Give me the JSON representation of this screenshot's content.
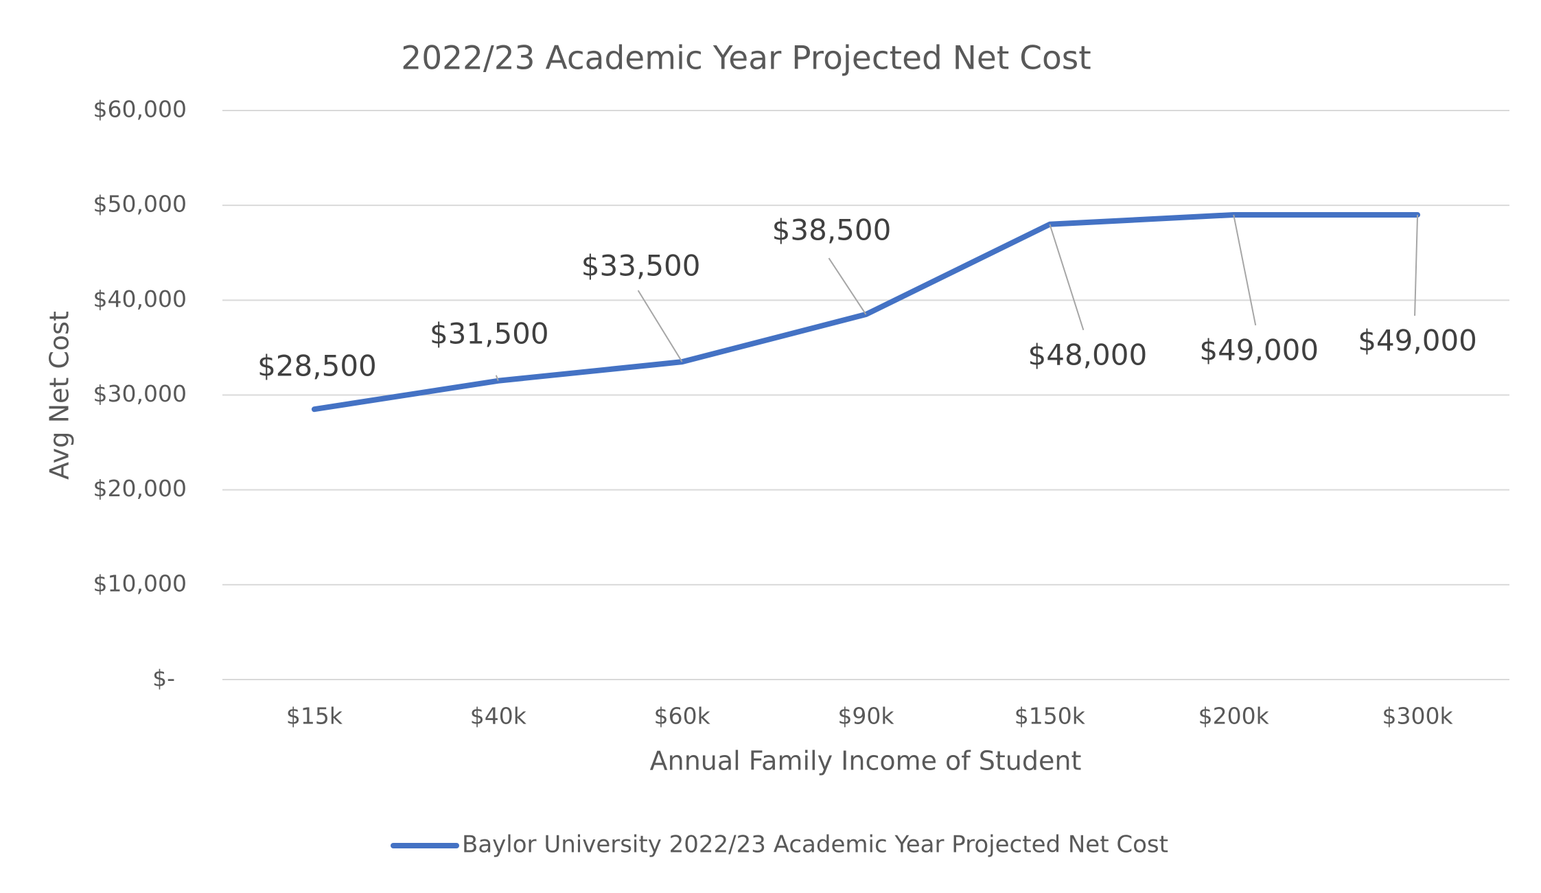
{
  "chart_data": {
    "type": "line",
    "title": "2022/23 Academic Year Projected Net Cost",
    "x_label": "Annual Family Income of Student",
    "y_label": "Avg Net Cost",
    "categories": [
      "$15k",
      "$40k",
      "$60k",
      "$90k",
      "$150k",
      "$200k",
      "$300k"
    ],
    "series": [
      {
        "name": "Baylor University 2022/23 Academic Year Projected Net Cost",
        "color": "#4472c4",
        "values": [
          28500,
          31500,
          33500,
          38500,
          48000,
          49000,
          49000
        ],
        "value_labels": [
          "$28,500",
          "$31,500",
          "$33,500",
          "$38,500",
          "$48,000",
          "$49,000",
          "$49,000"
        ]
      }
    ],
    "ylim": [
      0,
      60000
    ],
    "yticks": [
      {
        "value": 0,
        "label": "$-"
      },
      {
        "value": 10000,
        "label": "$10,000"
      },
      {
        "value": 20000,
        "label": "$20,000"
      },
      {
        "value": 30000,
        "label": "$30,000"
      },
      {
        "value": 40000,
        "label": "$40,000"
      },
      {
        "value": 50000,
        "label": "$50,000"
      },
      {
        "value": 60000,
        "label": "$60,000"
      }
    ],
    "grid": true,
    "legend": "bottom"
  }
}
